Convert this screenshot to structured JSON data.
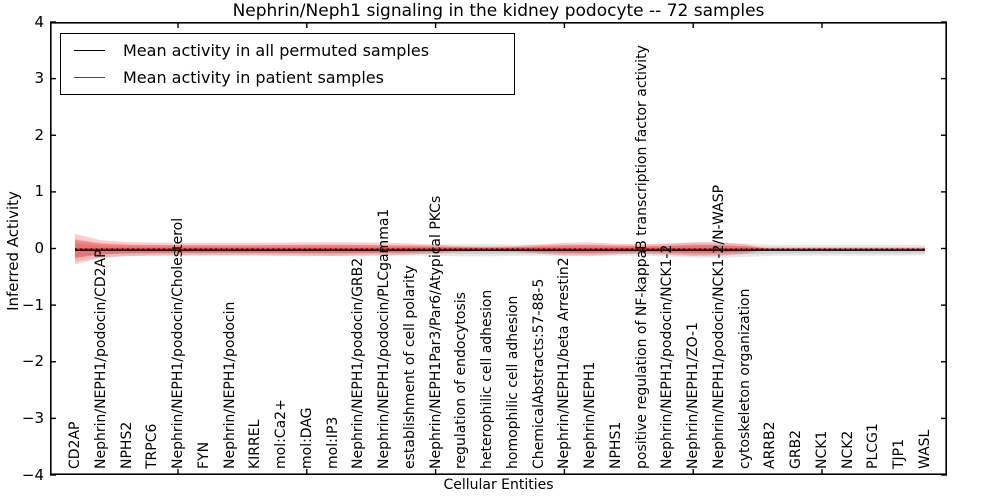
{
  "chart_data": {
    "type": "line",
    "title": "Nephrin/Neph1 signaling in the kidney podocyte -- 72 samples",
    "xlabel": "Cellular Entities",
    "ylabel": "Inferred Activity",
    "ylim": [
      -4,
      4
    ],
    "yticks": [
      4,
      3,
      2,
      1,
      0,
      -1,
      -2,
      -3,
      -4
    ],
    "xtick_every": 5,
    "xtick_start_index": 4,
    "grid": false,
    "legend_position": "upper left",
    "categories": [
      "CD2AP",
      "Nephrin/NEPH1/podocin/CD2AP",
      "NPHS2",
      "TRPC6",
      "Nephrin/NEPH1/podocin/Cholesterol",
      "FYN",
      "Nephrin/NEPH1/podocin",
      "KIRREL",
      "mol:Ca2+",
      "mol:DAG",
      "mol:IP3",
      "Nephrin/NEPH1/podocin/GRB2",
      "Nephrin/NEPH1/podocin/PLCgamma1",
      "establishment of cell polarity",
      "Nephrin/NEPH1Par3/Par6/Atypical PKCs",
      "regulation of endocytosis",
      "heterophilic cell adhesion",
      "homophilic cell adhesion",
      "ChemicalAbstracts:57-88-5",
      "Nephrin/NEPH1/beta Arrestin2",
      "Nephrin/NEPH1",
      "NPHS1",
      "positive regulation of NF-kappaB transcription factor activity",
      "Nephrin/NEPH1/podocin/NCK1-2",
      "Nephrin/NEPH1/ZO-1",
      "Nephrin/NEPH1/podocin/NCK1-2/N-WASP",
      "cytoskeleton organization",
      "ARRB2",
      "GRB2",
      "NCK1",
      "NCK2",
      "PLCG1",
      "TJP1",
      "WASL"
    ],
    "series": [
      {
        "name": "Mean activity in all permuted samples",
        "color": "#000000",
        "style": "solid",
        "values": [
          -0.03,
          -0.03,
          -0.03,
          -0.03,
          -0.03,
          -0.03,
          -0.03,
          -0.03,
          -0.03,
          -0.03,
          -0.03,
          -0.03,
          -0.03,
          -0.03,
          -0.03,
          -0.03,
          -0.03,
          -0.03,
          -0.03,
          -0.03,
          -0.03,
          -0.03,
          -0.03,
          -0.03,
          -0.03,
          -0.03,
          -0.03,
          -0.03,
          -0.03,
          -0.03,
          -0.03,
          -0.03,
          -0.03,
          -0.03
        ]
      },
      {
        "name": "Mean activity in patient samples",
        "color": "#ff0000",
        "style": "solid",
        "values": [
          -0.01,
          -0.01,
          -0.01,
          -0.01,
          -0.01,
          -0.01,
          -0.01,
          -0.01,
          -0.01,
          -0.01,
          -0.01,
          -0.01,
          -0.01,
          -0.01,
          -0.01,
          -0.01,
          -0.01,
          -0.01,
          -0.01,
          -0.01,
          -0.01,
          -0.01,
          -0.01,
          -0.01,
          -0.01,
          -0.01,
          -0.01,
          -0.01,
          -0.01,
          -0.01,
          -0.01,
          -0.01,
          -0.01,
          -0.01
        ]
      }
    ],
    "dotted_overlay": {
      "color": "#000000",
      "y": -0.012,
      "dash": "1.6 3.6"
    },
    "bands": [
      {
        "name": "permuted-range-outer",
        "color": "#000000",
        "opacity": 0.09,
        "center": -0.03,
        "halfwidths": [
          0.2,
          0.13,
          0.1,
          0.095,
          0.09,
          0.09,
          0.09,
          0.09,
          0.095,
          0.1,
          0.1,
          0.095,
          0.09,
          0.09,
          0.1,
          0.11,
          0.11,
          0.1,
          0.095,
          0.1,
          0.1,
          0.095,
          0.095,
          0.11,
          0.13,
          0.135,
          0.12,
          0.1,
          0.095,
          0.095,
          0.095,
          0.095,
          0.095,
          0.09
        ]
      },
      {
        "name": "permuted-range-inner",
        "color": "#000000",
        "opacity": 0.1,
        "center": -0.03,
        "halfwidths": [
          0.12,
          0.078,
          0.06,
          0.057,
          0.054,
          0.054,
          0.054,
          0.054,
          0.057,
          0.06,
          0.06,
          0.057,
          0.054,
          0.054,
          0.06,
          0.066,
          0.066,
          0.06,
          0.057,
          0.06,
          0.06,
          0.057,
          0.057,
          0.066,
          0.078,
          0.081,
          0.072,
          0.06,
          0.057,
          0.057,
          0.057,
          0.057,
          0.057,
          0.054
        ]
      },
      {
        "name": "patient-range-outer",
        "color": "#ff0000",
        "opacity": 0.2,
        "center": -0.01,
        "halfwidths": [
          0.27,
          0.155,
          0.125,
          0.115,
          0.112,
          0.112,
          0.112,
          0.112,
          0.115,
          0.118,
          0.122,
          0.118,
          0.112,
          0.1,
          0.075,
          0.05,
          0.042,
          0.05,
          0.08,
          0.112,
          0.118,
          0.095,
          0.082,
          0.1,
          0.122,
          0.118,
          0.085,
          0,
          0,
          0,
          0,
          0,
          0,
          0
        ]
      },
      {
        "name": "patient-range-inner",
        "color": "#ff0000",
        "opacity": 0.28,
        "center": -0.01,
        "halfwidths": [
          0.16,
          0.095,
          0.075,
          0.07,
          0.068,
          0.068,
          0.068,
          0.068,
          0.07,
          0.072,
          0.075,
          0.072,
          0.068,
          0.06,
          0.045,
          0.03,
          0.025,
          0.03,
          0.05,
          0.068,
          0.072,
          0.058,
          0.05,
          0.06,
          0.075,
          0.072,
          0.05,
          0,
          0,
          0,
          0,
          0,
          0,
          0
        ]
      }
    ]
  },
  "legend": {
    "items": [
      {
        "label": "Mean activity in all permuted samples",
        "color": "#000000"
      },
      {
        "label": "Mean activity in patient samples",
        "color": "#ff0000"
      }
    ]
  }
}
